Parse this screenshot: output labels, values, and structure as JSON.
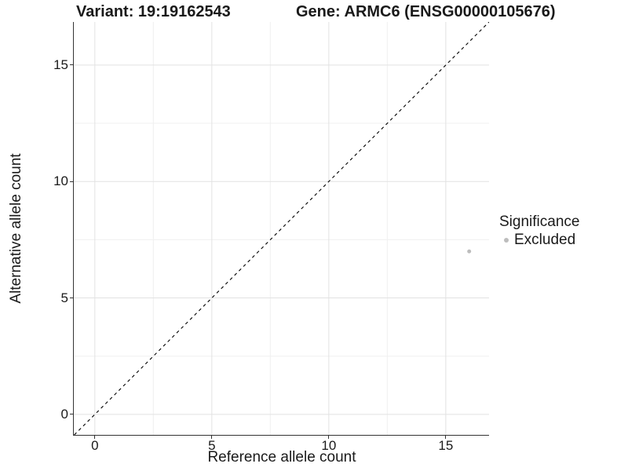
{
  "chart_data": {
    "type": "scatter",
    "title_left": "Variant: 19:19162543",
    "title_right": "Gene: ARMC6 (ENSG00000105676)",
    "xlabel": "Reference allele count",
    "ylabel": "Alternative allele count",
    "xlim": [
      -0.9,
      16.85
    ],
    "ylim": [
      -0.88,
      16.85
    ],
    "x_ticks": [
      0,
      5,
      10,
      15
    ],
    "y_ticks": [
      0,
      5,
      10,
      15
    ],
    "x_minor_ticks": [
      2.5,
      7.5,
      12.5
    ],
    "y_minor_ticks": [
      2.5,
      7.5,
      12.5
    ],
    "grid": true,
    "reference_line": {
      "type": "identity",
      "slope": 1,
      "intercept": 0,
      "style": "dashed",
      "color": "#000000"
    },
    "series": [
      {
        "name": "Excluded",
        "color": "#bdbdbd",
        "points": [
          {
            "x": 16,
            "y": 7
          }
        ]
      }
    ],
    "legend": {
      "title": "Significance",
      "position": "right",
      "entries": [
        {
          "label": "Excluded",
          "color": "#bdbdbd"
        }
      ]
    },
    "colors": {
      "grid_major": "#e2e2e2",
      "grid_minor": "#f0f0f0",
      "axis_line": "#333333",
      "text": "#1a1a1a",
      "background": "#ffffff"
    }
  }
}
